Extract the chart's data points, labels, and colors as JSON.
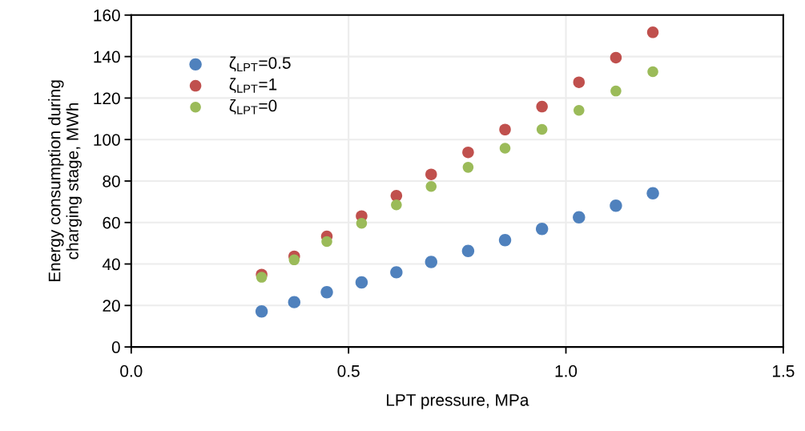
{
  "chart_data": {
    "type": "scatter",
    "xlabel": "LPT pressure, MPa",
    "ylabel": "Energy consumption during\ncharging stage, MWh",
    "xlim": [
      0,
      1.5
    ],
    "xticks": [
      {
        "value": 0,
        "label": "0.0"
      },
      {
        "value": 0.5,
        "label": "0.5"
      },
      {
        "value": 1,
        "label": "1.0"
      },
      {
        "value": 1.5,
        "label": "1.5"
      }
    ],
    "ylim": [
      0,
      160
    ],
    "yticks": [
      0,
      20,
      40,
      60,
      80,
      100,
      120,
      140,
      160
    ],
    "grid": true,
    "legend": "top left",
    "marker": "circle",
    "series": [
      {
        "name": "ζ$_{LPT}$=0.5",
        "color": "#4f81bd",
        "x": [
          0.3,
          0.375,
          0.45,
          0.53,
          0.61,
          0.69,
          0.775,
          0.86,
          0.945,
          1.03,
          1.115,
          1.2
        ],
        "values": [
          17.1,
          21.6,
          26.4,
          31.1,
          36.0,
          41.0,
          46.3,
          51.5,
          56.9,
          62.5,
          68.1,
          74.1
        ]
      },
      {
        "name": "ζ$_{LPT}$=1",
        "color": "#c0504d",
        "x": [
          0.3,
          0.375,
          0.45,
          0.53,
          0.61,
          0.69,
          0.775,
          0.86,
          0.945,
          1.03,
          1.115,
          1.2
        ],
        "values": [
          34.9,
          43.7,
          53.3,
          63.1,
          72.9,
          83.2,
          93.8,
          104.8,
          115.9,
          127.6,
          139.5,
          151.7
        ]
      },
      {
        "name": "ζ$_{LPT}$=0",
        "color": "#9bbb59",
        "x": [
          0.3,
          0.375,
          0.45,
          0.53,
          0.61,
          0.69,
          0.775,
          0.86,
          0.945,
          1.03,
          1.115,
          1.2
        ],
        "values": [
          33.6,
          42.0,
          50.8,
          59.6,
          68.5,
          77.4,
          86.6,
          95.8,
          104.9,
          114.1,
          123.4,
          132.7
        ]
      }
    ]
  }
}
